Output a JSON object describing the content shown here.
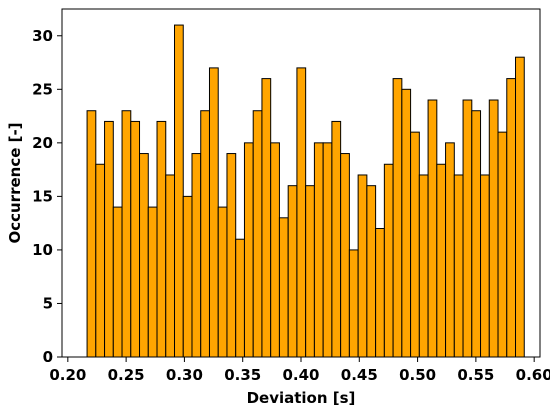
{
  "chart_data": {
    "type": "bar",
    "title": "",
    "xlabel": "Deviation [s]",
    "ylabel": "Occurrence [-]",
    "xlim": [
      0.195,
      0.605
    ],
    "ylim": [
      0,
      32.5
    ],
    "bin_width": 0.0075,
    "bar_color": "#FFA500",
    "edge_color": "#000000",
    "grid": false,
    "x_ticks": [
      {
        "value": 0.2,
        "label": "0.20"
      },
      {
        "value": 0.25,
        "label": "0.25"
      },
      {
        "value": 0.3,
        "label": "0.30"
      },
      {
        "value": 0.35,
        "label": "0.35"
      },
      {
        "value": 0.4,
        "label": "0.40"
      },
      {
        "value": 0.45,
        "label": "0.45"
      },
      {
        "value": 0.5,
        "label": "0.50"
      },
      {
        "value": 0.55,
        "label": "0.55"
      },
      {
        "value": 0.6,
        "label": "0.60"
      }
    ],
    "y_ticks": [
      {
        "value": 0,
        "label": "0"
      },
      {
        "value": 5,
        "label": "5"
      },
      {
        "value": 10,
        "label": "10"
      },
      {
        "value": 15,
        "label": "15"
      },
      {
        "value": 20,
        "label": "20"
      },
      {
        "value": 25,
        "label": "25"
      },
      {
        "value": 30,
        "label": "30"
      }
    ],
    "x_start": 0.2165,
    "values": [
      23,
      18,
      22,
      14,
      23,
      22,
      19,
      14,
      22,
      17,
      31,
      15,
      19,
      23,
      27,
      14,
      19,
      11,
      20,
      23,
      26,
      20,
      13,
      16,
      27,
      16,
      20,
      20,
      22,
      19,
      10,
      17,
      16,
      12,
      18,
      26,
      25,
      21,
      17,
      24,
      18,
      20,
      17,
      24,
      23,
      17,
      24,
      21,
      26,
      28
    ]
  }
}
